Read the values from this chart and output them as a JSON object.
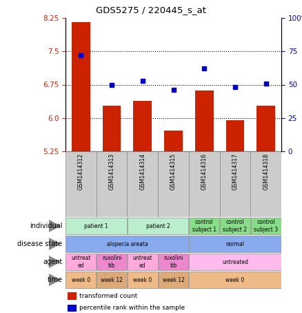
{
  "title": "GDS5275 / 220445_s_at",
  "samples": [
    "GSM1414312",
    "GSM1414313",
    "GSM1414314",
    "GSM1414315",
    "GSM1414316",
    "GSM1414317",
    "GSM1414318"
  ],
  "bar_values": [
    8.15,
    6.28,
    6.38,
    5.72,
    6.62,
    5.95,
    6.28
  ],
  "dot_values": [
    72,
    50,
    53,
    46,
    62,
    48,
    51
  ],
  "ylim_left": [
    5.25,
    8.25
  ],
  "ylim_right": [
    0,
    100
  ],
  "yticks_left": [
    5.25,
    6.0,
    6.75,
    7.5,
    8.25
  ],
  "yticks_right": [
    0,
    25,
    50,
    75,
    100
  ],
  "bar_color": "#cc2200",
  "dot_color": "#0000cc",
  "rows": [
    {
      "label": "individual",
      "cells": [
        {
          "text": "patient 1",
          "span": 2,
          "color": "#bbeecc"
        },
        {
          "text": "patient 2",
          "span": 2,
          "color": "#bbeecc"
        },
        {
          "text": "control\nsubject 1",
          "span": 1,
          "color": "#88dd88"
        },
        {
          "text": "control\nsubject 2",
          "span": 1,
          "color": "#88dd88"
        },
        {
          "text": "control\nsubject 3",
          "span": 1,
          "color": "#88dd88"
        }
      ]
    },
    {
      "label": "disease state",
      "cells": [
        {
          "text": "alopecia areata",
          "span": 4,
          "color": "#88aaee"
        },
        {
          "text": "normal",
          "span": 3,
          "color": "#88aaee"
        }
      ]
    },
    {
      "label": "agent",
      "cells": [
        {
          "text": "untreat\ned",
          "span": 1,
          "color": "#ffaadd"
        },
        {
          "text": "ruxolini\ntib",
          "span": 1,
          "color": "#ee88cc"
        },
        {
          "text": "untreat\ned",
          "span": 1,
          "color": "#ffaadd"
        },
        {
          "text": "ruxolini\ntib",
          "span": 1,
          "color": "#ee88cc"
        },
        {
          "text": "untreated",
          "span": 3,
          "color": "#ffbbee"
        }
      ]
    },
    {
      "label": "time",
      "cells": [
        {
          "text": "week 0",
          "span": 1,
          "color": "#eebb88"
        },
        {
          "text": "week 12",
          "span": 1,
          "color": "#ddaa77"
        },
        {
          "text": "week 0",
          "span": 1,
          "color": "#eebb88"
        },
        {
          "text": "week 12",
          "span": 1,
          "color": "#ddaa77"
        },
        {
          "text": "week 0",
          "span": 3,
          "color": "#eebb88"
        }
      ]
    }
  ],
  "legend": [
    {
      "color": "#cc2200",
      "label": "transformed count"
    },
    {
      "color": "#0000cc",
      "label": "percentile rank within the sample"
    }
  ]
}
